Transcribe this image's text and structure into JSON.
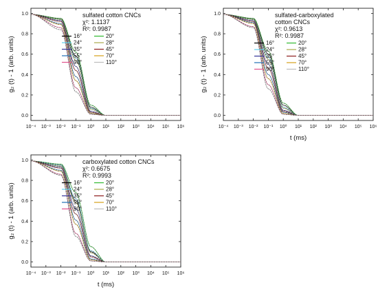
{
  "chart_data": [
    {
      "type": "line",
      "title": "sulfated cotton CNCs",
      "stats": [
        "χ²: 1.1137",
        "R²: 0.9987"
      ],
      "xlabel": "",
      "ylabel": "g₂ (t) - 1 (arb. units)",
      "x_scale": "log",
      "xlim": [
        0.0001,
        1000000
      ],
      "ylim": [
        -0.05,
        1.05
      ],
      "y_ticks": [
        "0.0",
        "0.2",
        "0.4",
        "0.6",
        "0.8",
        "1.0"
      ],
      "x_ticks": [
        "10⁻⁴",
        "10⁻³",
        "10⁻²",
        "10⁻¹",
        "10⁰",
        "10¹",
        "10²",
        "10³",
        "10⁴",
        "10⁵",
        "10⁶"
      ],
      "legend_position": "top-right",
      "series": [
        {
          "name": "16°",
          "color": "#000000",
          "values": [
            [
              0.0001,
              0.99
            ],
            [
              0.01,
              0.95
            ],
            [
              0.1,
              0.58
            ],
            [
              1,
              0.08
            ],
            [
              10,
              0.0
            ]
          ]
        },
        {
          "name": "20°",
          "color": "#2db82d",
          "values": [
            [
              0.0001,
              0.99
            ],
            [
              0.01,
              0.95
            ],
            [
              0.1,
              0.62
            ],
            [
              1,
              0.1
            ],
            [
              10,
              0.0
            ]
          ]
        },
        {
          "name": "24°",
          "color": "#5fd0ee",
          "values": [
            [
              0.0001,
              0.99
            ],
            [
              0.01,
              0.94
            ],
            [
              0.1,
              0.56
            ],
            [
              1,
              0.07
            ],
            [
              10,
              0.0
            ]
          ]
        },
        {
          "name": "28°",
          "color": "#a9a94a",
          "values": [
            [
              0.0001,
              0.99
            ],
            [
              0.01,
              0.94
            ],
            [
              0.1,
              0.54
            ],
            [
              1,
              0.06
            ],
            [
              10,
              0.0
            ]
          ]
        },
        {
          "name": "35°",
          "color": "#333399",
          "values": [
            [
              0.0001,
              0.99
            ],
            [
              0.01,
              0.93
            ],
            [
              0.1,
              0.48
            ],
            [
              1,
              0.04
            ],
            [
              10,
              0.0
            ]
          ]
        },
        {
          "name": "45°",
          "color": "#8b1a1a",
          "values": [
            [
              0.0001,
              0.99
            ],
            [
              0.01,
              0.92
            ],
            [
              0.1,
              0.44
            ],
            [
              1,
              0.03
            ],
            [
              10,
              0.0
            ]
          ]
        },
        {
          "name": "55°",
          "color": "#1f6fb5",
          "values": [
            [
              0.0001,
              0.99
            ],
            [
              0.01,
              0.9
            ],
            [
              0.1,
              0.38
            ],
            [
              1,
              0.02
            ],
            [
              10,
              0.0
            ]
          ]
        },
        {
          "name": "70°",
          "color": "#d4a017",
          "values": [
            [
              0.0001,
              0.99
            ],
            [
              0.01,
              0.89
            ],
            [
              0.1,
              0.34
            ],
            [
              1,
              0.02
            ],
            [
              10,
              0.0
            ]
          ]
        },
        {
          "name": "90°",
          "color": "#e0508a",
          "values": [
            [
              0.0001,
              0.99
            ],
            [
              0.01,
              0.86
            ],
            [
              0.1,
              0.27
            ],
            [
              1,
              0.01
            ],
            [
              10,
              0.0
            ]
          ]
        },
        {
          "name": "110°",
          "color": "#bdbdbd",
          "values": [
            [
              0.0001,
              0.99
            ],
            [
              0.01,
              0.84
            ],
            [
              0.1,
              0.23
            ],
            [
              1,
              0.01
            ],
            [
              10,
              0.0
            ]
          ]
        }
      ]
    },
    {
      "type": "line",
      "title": "sulfated-carboxylated\ncotton CNCs",
      "stats": [
        "χ²: 0.9613",
        "R²: 0.9987"
      ],
      "xlabel": "t (ms)",
      "ylabel": "g₂ (t) - 1 (arb. units)",
      "x_scale": "log",
      "xlim": [
        0.0001,
        1000000
      ],
      "ylim": [
        -0.05,
        1.05
      ],
      "y_ticks": [
        "0.0",
        "0.2",
        "0.4",
        "0.6",
        "0.8",
        "1.0"
      ],
      "x_ticks": [
        "10⁻⁴",
        "10⁻³",
        "10⁻²",
        "10⁻¹",
        "10⁰",
        "10¹",
        "10²",
        "10³",
        "10⁴",
        "10⁵",
        "10⁶"
      ],
      "legend_position": "top-right",
      "series": [
        {
          "name": "16°",
          "color": "#000000",
          "values": [
            [
              0.0001,
              0.99
            ],
            [
              0.01,
              0.95
            ],
            [
              0.1,
              0.6
            ],
            [
              1,
              0.1
            ],
            [
              10,
              0.0
            ]
          ]
        },
        {
          "name": "20°",
          "color": "#2db82d",
          "values": [
            [
              0.0001,
              0.99
            ],
            [
              0.01,
              0.95
            ],
            [
              0.1,
              0.63
            ],
            [
              1,
              0.12
            ],
            [
              10,
              0.0
            ]
          ]
        },
        {
          "name": "24°",
          "color": "#5fd0ee",
          "values": [
            [
              0.0001,
              0.99
            ],
            [
              0.01,
              0.94
            ],
            [
              0.1,
              0.57
            ],
            [
              1,
              0.08
            ],
            [
              10,
              0.0
            ]
          ]
        },
        {
          "name": "28°",
          "color": "#a9a94a",
          "values": [
            [
              0.0001,
              0.99
            ],
            [
              0.01,
              0.94
            ],
            [
              0.1,
              0.55
            ],
            [
              1,
              0.07
            ],
            [
              10,
              0.0
            ]
          ]
        },
        {
          "name": "35°",
          "color": "#333399",
          "values": [
            [
              0.0001,
              0.99
            ],
            [
              0.01,
              0.93
            ],
            [
              0.1,
              0.5
            ],
            [
              1,
              0.05
            ],
            [
              10,
              0.0
            ]
          ]
        },
        {
          "name": "45°",
          "color": "#8b1a1a",
          "values": [
            [
              0.0001,
              0.99
            ],
            [
              0.01,
              0.92
            ],
            [
              0.1,
              0.46
            ],
            [
              1,
              0.04
            ],
            [
              10,
              0.0
            ]
          ]
        },
        {
          "name": "55°",
          "color": "#1f6fb5",
          "values": [
            [
              0.0001,
              0.99
            ],
            [
              0.01,
              0.91
            ],
            [
              0.1,
              0.4
            ],
            [
              1,
              0.03
            ],
            [
              10,
              0.0
            ]
          ]
        },
        {
          "name": "70°",
          "color": "#d4a017",
          "values": [
            [
              0.0001,
              0.99
            ],
            [
              0.01,
              0.9
            ],
            [
              0.1,
              0.36
            ],
            [
              1,
              0.02
            ],
            [
              10,
              0.0
            ]
          ]
        },
        {
          "name": "90°",
          "color": "#e0508a",
          "values": [
            [
              0.0001,
              0.99
            ],
            [
              0.01,
              0.87
            ],
            [
              0.1,
              0.3
            ],
            [
              1,
              0.01
            ],
            [
              10,
              0.0
            ]
          ]
        },
        {
          "name": "110°",
          "color": "#bdbdbd",
          "values": [
            [
              0.0001,
              0.99
            ],
            [
              0.01,
              0.86
            ],
            [
              0.1,
              0.26
            ],
            [
              1,
              0.01
            ],
            [
              10,
              0.0
            ]
          ]
        }
      ]
    },
    {
      "type": "line",
      "title": "carboxylated cotton CNCs",
      "stats": [
        "χ²: 0.6675",
        "R²: 0.9993"
      ],
      "xlabel": "t (ms)",
      "ylabel": "g₂ (t) - 1 (arb. units)",
      "x_scale": "log",
      "xlim": [
        0.0001,
        1000000
      ],
      "ylim": [
        -0.05,
        1.05
      ],
      "y_ticks": [
        "0.0",
        "0.2",
        "0.4",
        "0.6",
        "0.8",
        "1.0"
      ],
      "x_ticks": [
        "10⁻⁴",
        "10⁻³",
        "10⁻²",
        "10⁻¹",
        "10⁰",
        "10¹",
        "10²",
        "10³",
        "10⁴",
        "10⁵",
        "10⁶"
      ],
      "legend_position": "top-right",
      "series": [
        {
          "name": "16°",
          "color": "#000000",
          "values": [
            [
              0.0001,
              0.99
            ],
            [
              0.01,
              0.95
            ],
            [
              0.1,
              0.6
            ],
            [
              1,
              0.1
            ],
            [
              10,
              0.0
            ]
          ]
        },
        {
          "name": "20°",
          "color": "#2db82d",
          "values": [
            [
              0.0001,
              0.99
            ],
            [
              0.01,
              0.96
            ],
            [
              0.1,
              0.68
            ],
            [
              1,
              0.15
            ],
            [
              10,
              0.0
            ]
          ]
        },
        {
          "name": "24°",
          "color": "#5fd0ee",
          "values": [
            [
              0.0001,
              0.99
            ],
            [
              0.01,
              0.95
            ],
            [
              0.1,
              0.62
            ],
            [
              1,
              0.11
            ],
            [
              10,
              0.0
            ]
          ]
        },
        {
          "name": "28°",
          "color": "#a9a94a",
          "values": [
            [
              0.0001,
              0.99
            ],
            [
              0.01,
              0.94
            ],
            [
              0.1,
              0.58
            ],
            [
              1,
              0.09
            ],
            [
              10,
              0.0
            ]
          ]
        },
        {
          "name": "35°",
          "color": "#333399",
          "values": [
            [
              0.0001,
              0.99
            ],
            [
              0.01,
              0.93
            ],
            [
              0.1,
              0.52
            ],
            [
              1,
              0.06
            ],
            [
              10,
              0.0
            ]
          ]
        },
        {
          "name": "45°",
          "color": "#8b1a1a",
          "values": [
            [
              0.0001,
              0.99
            ],
            [
              0.01,
              0.92
            ],
            [
              0.1,
              0.47
            ],
            [
              1,
              0.05
            ],
            [
              10,
              0.0
            ]
          ]
        },
        {
          "name": "55°",
          "color": "#1f6fb5",
          "values": [
            [
              0.0001,
              0.99
            ],
            [
              0.01,
              0.9
            ],
            [
              0.1,
              0.41
            ],
            [
              1,
              0.03
            ],
            [
              10,
              0.0
            ]
          ]
        },
        {
          "name": "70°",
          "color": "#d4a017",
          "values": [
            [
              0.0001,
              0.99
            ],
            [
              0.01,
              0.89
            ],
            [
              0.1,
              0.37
            ],
            [
              1,
              0.02
            ],
            [
              10,
              0.0
            ]
          ]
        },
        {
          "name": "90°",
          "color": "#e0508a",
          "values": [
            [
              0.0001,
              0.99
            ],
            [
              0.01,
              0.86
            ],
            [
              0.1,
              0.28
            ],
            [
              1,
              0.01
            ],
            [
              10,
              0.0
            ]
          ]
        },
        {
          "name": "110°",
          "color": "#bdbdbd",
          "values": [
            [
              0.0001,
              0.99
            ],
            [
              0.01,
              0.85
            ],
            [
              0.1,
              0.25
            ],
            [
              1,
              0.01
            ],
            [
              10,
              0.0
            ]
          ]
        }
      ]
    }
  ]
}
